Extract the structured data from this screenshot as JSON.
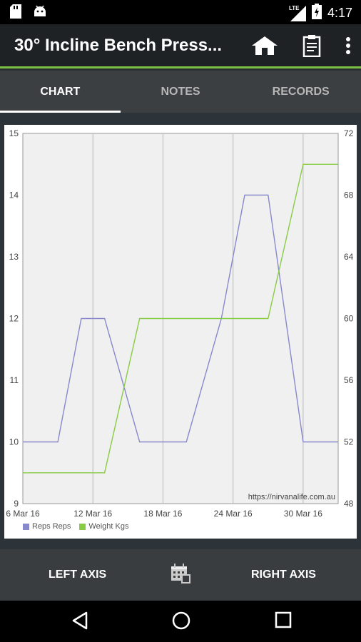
{
  "status_bar": {
    "time": "4:17",
    "network": "LTE"
  },
  "app_bar": {
    "title": "30° Incline Bench Press..."
  },
  "tabs": [
    {
      "label": "CHART",
      "active": true
    },
    {
      "label": "NOTES",
      "active": false
    },
    {
      "label": "RECORDS",
      "active": false
    }
  ],
  "bottom_bar": {
    "left_label": "LEFT AXIS",
    "right_label": "RIGHT AXIS"
  },
  "icons": {
    "status_left": [
      "sd-card-icon",
      "android-icon"
    ],
    "status_right": [
      "signal-icon",
      "battery-icon"
    ],
    "app_actions": [
      "home-icon",
      "clipboard-icon",
      "more-vert-icon"
    ],
    "bottom_center": "calendar-icon",
    "nav": [
      "back-icon",
      "home-circle-icon",
      "recents-icon"
    ]
  },
  "colors": {
    "accent": "#7bc043",
    "reps": "#8888cc",
    "weight": "#88cc44"
  },
  "chart_data": {
    "type": "line",
    "x_dates": [
      "2016-03-06",
      "2016-03-07",
      "2016-03-08",
      "2016-03-09",
      "2016-03-10",
      "2016-03-11",
      "2016-03-12",
      "2016-03-13",
      "2016-03-14",
      "2016-03-15",
      "2016-03-16",
      "2016-03-17",
      "2016-03-18",
      "2016-03-19",
      "2016-03-20",
      "2016-03-21",
      "2016-03-22",
      "2016-03-23",
      "2016-03-24",
      "2016-03-25",
      "2016-03-26",
      "2016-03-27",
      "2016-03-28",
      "2016-03-29",
      "2016-03-30",
      "2016-03-31",
      "2016-04-01",
      "2016-04-02"
    ],
    "x_ticks": [
      "6 Mar 16",
      "12 Mar 16",
      "18 Mar 16",
      "24 Mar 16",
      "30 Mar 16"
    ],
    "left_axis": {
      "ticks": [
        "9",
        "10",
        "11",
        "12",
        "13",
        "14",
        "15"
      ],
      "range": [
        9,
        15
      ]
    },
    "right_axis": {
      "ticks": [
        "48",
        "52",
        "56",
        "60",
        "64",
        "68",
        "72"
      ],
      "range": [
        48,
        72
      ]
    },
    "series": [
      {
        "name": "Reps Reps",
        "axis": "left",
        "color": "#8888cc",
        "points": [
          [
            "2016-03-06",
            10
          ],
          [
            "2016-03-09",
            10
          ],
          [
            "2016-03-11",
            12
          ],
          [
            "2016-03-13",
            12
          ],
          [
            "2016-03-16",
            10
          ],
          [
            "2016-03-20",
            10
          ],
          [
            "2016-03-23",
            12
          ],
          [
            "2016-03-25",
            14
          ],
          [
            "2016-03-27",
            14
          ],
          [
            "2016-03-30",
            10
          ],
          [
            "2016-04-02",
            10
          ]
        ]
      },
      {
        "name": "Weight Kgs",
        "axis": "right",
        "color": "#88cc44",
        "points": [
          [
            "2016-03-06",
            50
          ],
          [
            "2016-03-13",
            50
          ],
          [
            "2016-03-16",
            60
          ],
          [
            "2016-03-27",
            60
          ],
          [
            "2016-03-30",
            70
          ],
          [
            "2016-04-02",
            70
          ]
        ]
      }
    ],
    "grid": true,
    "legend": "bottom-left",
    "watermark": "https://nirvanalife.com.au"
  }
}
